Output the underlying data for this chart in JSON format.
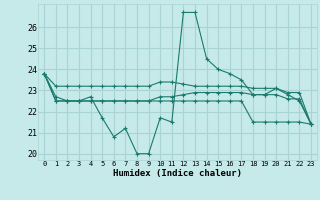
{
  "xlabel": "Humidex (Indice chaleur)",
  "ylabel": "",
  "background_color": "#c6e9e9",
  "grid_color": "#aad4d4",
  "line_color": "#1a7a6e",
  "xlim": [
    -0.5,
    23.5
  ],
  "ylim": [
    19.7,
    27.1
  ],
  "yticks": [
    20,
    21,
    22,
    23,
    24,
    25,
    26
  ],
  "xticks": [
    0,
    1,
    2,
    3,
    4,
    5,
    6,
    7,
    8,
    9,
    10,
    11,
    12,
    13,
    14,
    15,
    16,
    17,
    18,
    19,
    20,
    21,
    22,
    23
  ],
  "xtick_labels": [
    "0",
    "1",
    "2",
    "3",
    "4",
    "5",
    "6",
    "7",
    "8",
    "9",
    "10",
    "11",
    "12",
    "13",
    "14",
    "15",
    "16",
    "17",
    "18",
    "19",
    "20",
    "21",
    "22",
    "23"
  ],
  "series": [
    [
      23.8,
      23.2,
      23.2,
      23.2,
      23.2,
      23.2,
      23.2,
      23.2,
      23.2,
      23.2,
      23.4,
      23.4,
      23.3,
      23.2,
      23.2,
      23.2,
      23.2,
      23.2,
      23.1,
      23.1,
      23.1,
      22.9,
      22.9,
      21.4
    ],
    [
      23.8,
      22.7,
      22.5,
      22.5,
      22.7,
      21.7,
      20.8,
      21.2,
      20.0,
      20.0,
      21.7,
      21.5,
      26.7,
      26.7,
      24.5,
      24.0,
      23.8,
      23.5,
      22.8,
      22.8,
      23.1,
      22.8,
      22.5,
      21.4
    ],
    [
      23.8,
      22.5,
      22.5,
      22.5,
      22.5,
      22.5,
      22.5,
      22.5,
      22.5,
      22.5,
      22.7,
      22.7,
      22.8,
      22.9,
      22.9,
      22.9,
      22.9,
      22.9,
      22.8,
      22.8,
      22.8,
      22.6,
      22.6,
      21.4
    ],
    [
      23.8,
      22.5,
      22.5,
      22.5,
      22.5,
      22.5,
      22.5,
      22.5,
      22.5,
      22.5,
      22.5,
      22.5,
      22.5,
      22.5,
      22.5,
      22.5,
      22.5,
      22.5,
      21.5,
      21.5,
      21.5,
      21.5,
      21.5,
      21.4
    ]
  ]
}
